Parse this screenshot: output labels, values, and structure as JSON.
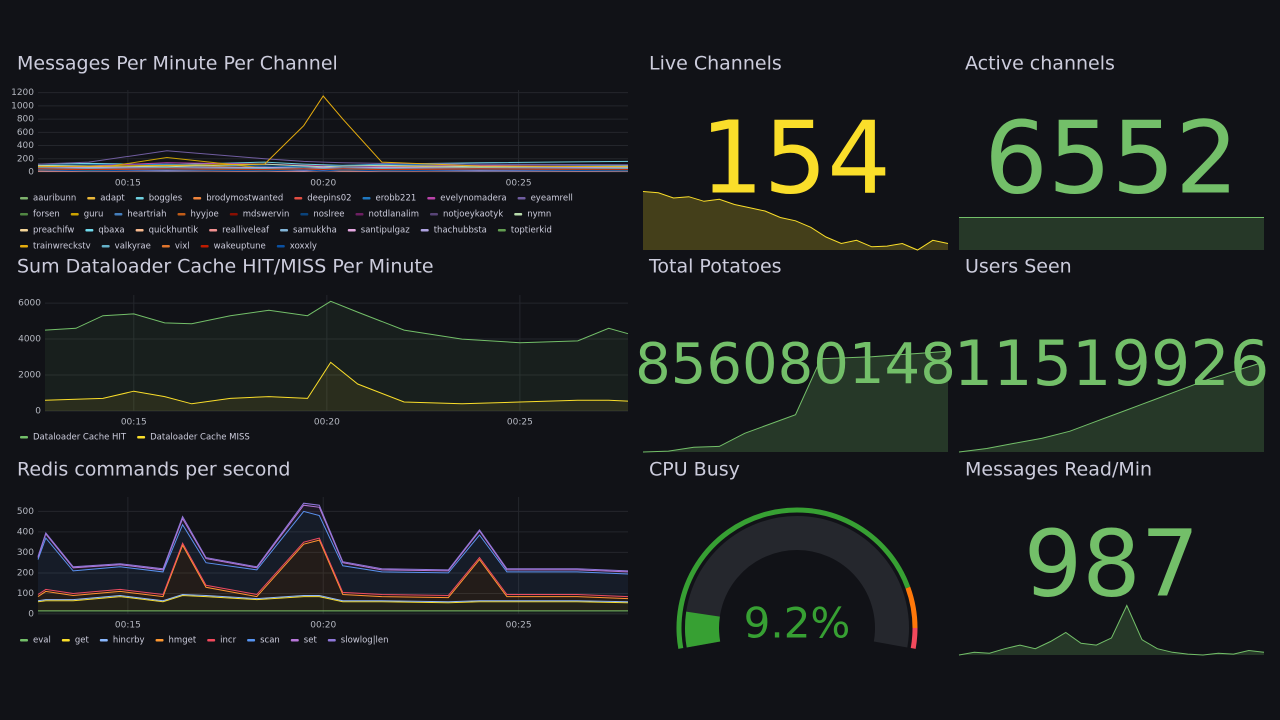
{
  "chart_data": [
    {
      "type": "line",
      "title": "Messages Per Minute Per Channel",
      "x": [
        12.7,
        14,
        16,
        18.5,
        19.5,
        20,
        20.5,
        21.5,
        24,
        27.8
      ],
      "xlim": [
        12.7,
        27.8
      ],
      "xticks": [
        {
          "value": 15,
          "label": "00:15"
        },
        {
          "value": 20,
          "label": "00:20"
        },
        {
          "value": 25,
          "label": "00:25"
        }
      ],
      "ylim": [
        0,
        1240
      ],
      "yticks": [
        0,
        200,
        400,
        600,
        800,
        1000,
        1200
      ],
      "grid": true,
      "series": [
        {
          "name": "aauribunn",
          "color": "#7EB26D",
          "values": [
            60,
            70,
            50,
            60,
            40,
            50,
            60,
            50,
            40,
            30
          ]
        },
        {
          "name": "adapt",
          "color": "#EAB839",
          "values": [
            90,
            80,
            100,
            70,
            60,
            50,
            60,
            80,
            70,
            60
          ]
        },
        {
          "name": "boggles",
          "color": "#6ED0E0",
          "values": [
            120,
            130,
            110,
            150,
            120,
            110,
            100,
            120,
            140,
            160
          ]
        },
        {
          "name": "brodymostwanted",
          "color": "#EF843C",
          "values": [
            40,
            60,
            50,
            40,
            30,
            40,
            50,
            40,
            30,
            40
          ]
        },
        {
          "name": "deepins02",
          "color": "#E24D42",
          "values": [
            20,
            30,
            20,
            20,
            30,
            20,
            20,
            30,
            20,
            20
          ]
        },
        {
          "name": "erobb221",
          "color": "#1F78C1",
          "values": [
            100,
            110,
            120,
            90,
            80,
            90,
            100,
            110,
            120,
            100
          ]
        },
        {
          "name": "evelynomadera",
          "color": "#BA43A9",
          "values": [
            80,
            90,
            140,
            120,
            100,
            90,
            80,
            90,
            100,
            80
          ]
        },
        {
          "name": "eyeamrell",
          "color": "#705DA0",
          "values": [
            120,
            150,
            320,
            200,
            160,
            150,
            140,
            130,
            120,
            110
          ]
        },
        {
          "name": "forsen",
          "color": "#508642",
          "values": [
            50,
            40,
            60,
            50,
            40,
            50,
            40,
            50,
            60,
            50
          ]
        },
        {
          "name": "guru",
          "color": "#CCA300",
          "values": [
            30,
            40,
            220,
            60,
            40,
            30,
            40,
            30,
            40,
            30
          ]
        },
        {
          "name": "heartriah",
          "color": "#447EBC",
          "values": [
            10,
            20,
            10,
            20,
            10,
            20,
            10,
            20,
            10,
            10
          ]
        },
        {
          "name": "hyyjoe",
          "color": "#C15C17",
          "values": [
            60,
            50,
            70,
            60,
            50,
            60,
            70,
            60,
            50,
            60
          ]
        },
        {
          "name": "mdswervin",
          "color": "#890F02",
          "values": [
            30,
            20,
            30,
            20,
            30,
            20,
            30,
            20,
            30,
            20
          ]
        },
        {
          "name": "noslree",
          "color": "#0A437C",
          "values": [
            40,
            50,
            40,
            50,
            40,
            50,
            40,
            50,
            40,
            50
          ]
        },
        {
          "name": "notdlanalim",
          "color": "#6D1F62",
          "values": [
            20,
            30,
            40,
            30,
            20,
            30,
            40,
            30,
            20,
            30
          ]
        },
        {
          "name": "notjoeykaotyk",
          "color": "#584477",
          "values": [
            70,
            60,
            80,
            70,
            60,
            70,
            80,
            70,
            60,
            70
          ]
        },
        {
          "name": "nymn",
          "color": "#B7DBAB",
          "values": [
            100,
            90,
            80,
            120,
            90,
            80,
            90,
            100,
            80,
            90
          ]
        },
        {
          "name": "preachifw",
          "color": "#F4D598",
          "values": [
            20,
            20,
            30,
            20,
            20,
            30,
            20,
            20,
            30,
            20
          ]
        },
        {
          "name": "qbaxa",
          "color": "#70DBED",
          "values": [
            50,
            60,
            50,
            60,
            50,
            60,
            50,
            60,
            50,
            60
          ]
        },
        {
          "name": "quickhuntik",
          "color": "#F9BA8F",
          "values": [
            30,
            40,
            30,
            40,
            30,
            40,
            30,
            40,
            30,
            40
          ]
        },
        {
          "name": "realliveleaf",
          "color": "#F29191",
          "values": [
            10,
            10,
            20,
            10,
            10,
            20,
            10,
            10,
            20,
            10
          ]
        },
        {
          "name": "samukkha",
          "color": "#82B5D8",
          "values": [
            40,
            30,
            40,
            30,
            40,
            30,
            40,
            30,
            40,
            30
          ]
        },
        {
          "name": "santipulgaz",
          "color": "#E5A8E2",
          "values": [
            20,
            30,
            20,
            30,
            20,
            30,
            20,
            30,
            20,
            30
          ]
        },
        {
          "name": "thachubbsta",
          "color": "#AEA2E0",
          "values": [
            60,
            70,
            60,
            70,
            60,
            70,
            60,
            70,
            60,
            70
          ]
        },
        {
          "name": "toptierkid",
          "color": "#629E51",
          "values": [
            30,
            30,
            40,
            30,
            30,
            40,
            30,
            30,
            40,
            30
          ]
        },
        {
          "name": "trainwreckstv",
          "color": "#E5AC0E",
          "values": [
            80,
            90,
            100,
            120,
            700,
            1150,
            800,
            150,
            90,
            80
          ]
        },
        {
          "name": "valkyrae",
          "color": "#64B0C8",
          "values": [
            60,
            50,
            60,
            50,
            60,
            50,
            60,
            50,
            60,
            50
          ]
        },
        {
          "name": "vixl",
          "color": "#E0752D",
          "values": [
            20,
            40,
            30,
            20,
            30,
            40,
            20,
            30,
            40,
            20
          ]
        },
        {
          "name": "wakeuptune",
          "color": "#BF1B00",
          "values": [
            50,
            40,
            50,
            40,
            50,
            40,
            50,
            40,
            50,
            40
          ]
        },
        {
          "name": "xoxxly",
          "color": "#0A50A1",
          "values": [
            30,
            20,
            30,
            20,
            30,
            20,
            30,
            20,
            30,
            20
          ]
        }
      ]
    },
    {
      "type": "line",
      "title": "Sum Dataloader Cache HIT/MISS Per Minute",
      "x": [
        12.7,
        13.5,
        14.2,
        15,
        15.8,
        16.5,
        17.5,
        18.5,
        19.5,
        20.1,
        20.8,
        22,
        23.5,
        25,
        26.5,
        27.3,
        27.8
      ],
      "xlim": [
        12.7,
        27.8
      ],
      "xticks": [
        {
          "value": 15,
          "label": "00:15"
        },
        {
          "value": 20,
          "label": "00:20"
        },
        {
          "value": 25,
          "label": "00:25"
        }
      ],
      "ylim": [
        0,
        6450
      ],
      "yticks": [
        0,
        2000,
        4000,
        6000
      ],
      "grid": true,
      "series": [
        {
          "name": "Dataloader Cache HIT",
          "color": "#73bf69",
          "values": [
            4500,
            4600,
            5300,
            5400,
            4900,
            4850,
            5300,
            5600,
            5300,
            6100,
            5500,
            4500,
            4000,
            3800,
            3900,
            4600,
            4300
          ]
        },
        {
          "name": "Dataloader Cache MISS",
          "color": "#fade2a",
          "values": [
            600,
            650,
            700,
            1100,
            800,
            400,
            700,
            800,
            700,
            2700,
            1500,
            500,
            400,
            500,
            600,
            600,
            550
          ]
        }
      ]
    },
    {
      "type": "line",
      "stacked": true,
      "title": "Redis commands per second",
      "x": [
        12.7,
        12.9,
        13.6,
        14.8,
        15.9,
        16.4,
        17,
        18.3,
        19.5,
        19.9,
        20.5,
        21.5,
        23.2,
        24,
        24.7,
        26.5,
        27.8
      ],
      "xlim": [
        12.7,
        27.8
      ],
      "xticks": [
        {
          "value": 15,
          "label": "00:15"
        },
        {
          "value": 20,
          "label": "00:20"
        },
        {
          "value": 25,
          "label": "00:25"
        }
      ],
      "ylim": [
        0,
        570
      ],
      "yticks": [
        0,
        100,
        200,
        300,
        400,
        500
      ],
      "grid": true,
      "series": [
        {
          "name": "eval",
          "color": "#73bf69",
          "values": [
            15,
            15,
            15,
            15,
            15,
            15,
            15,
            15,
            15,
            15,
            15,
            15,
            15,
            15,
            15,
            15,
            15
          ]
        },
        {
          "name": "get",
          "color": "#fade2a",
          "values": [
            45,
            50,
            50,
            70,
            45,
            75,
            70,
            55,
            70,
            70,
            45,
            45,
            40,
            45,
            45,
            45,
            40
          ]
        },
        {
          "name": "hincrby",
          "color": "#8ab8ff",
          "values": [
            5,
            5,
            5,
            5,
            5,
            5,
            5,
            5,
            5,
            5,
            5,
            5,
            5,
            5,
            5,
            5,
            5
          ]
        },
        {
          "name": "hmget",
          "color": "#ff9830",
          "values": [
            20,
            40,
            20,
            20,
            20,
            240,
            40,
            10,
            250,
            270,
            30,
            20,
            20,
            200,
            20,
            20,
            15
          ]
        },
        {
          "name": "incr",
          "color": "#f2495c",
          "values": [
            10,
            10,
            10,
            10,
            10,
            10,
            10,
            10,
            10,
            10,
            10,
            10,
            10,
            10,
            10,
            10,
            10
          ]
        },
        {
          "name": "scan",
          "color": "#5794f2",
          "values": [
            170,
            250,
            110,
            110,
            110,
            90,
            110,
            120,
            150,
            110,
            130,
            110,
            110,
            110,
            110,
            110,
            110
          ]
        },
        {
          "name": "set",
          "color": "#b877d9",
          "values": [
            10,
            20,
            15,
            10,
            10,
            30,
            20,
            10,
            30,
            40,
            15,
            10,
            10,
            20,
            10,
            10,
            10
          ]
        },
        {
          "name": "slowlog|len",
          "color": "#8f77d9",
          "values": [
            5,
            5,
            5,
            5,
            5,
            10,
            5,
            5,
            10,
            10,
            5,
            5,
            5,
            5,
            5,
            5,
            5
          ]
        }
      ]
    }
  ],
  "stats": [
    {
      "type": "stat",
      "title": "Live Channels",
      "value": 154,
      "color": "#fade2a",
      "sparkline": [
        180,
        178,
        170,
        172,
        165,
        168,
        160,
        155,
        150,
        140,
        135,
        125,
        110,
        100,
        105,
        95,
        96,
        100,
        90,
        105,
        100
      ]
    },
    {
      "type": "stat",
      "title": "Active channels",
      "value": 6552,
      "color": "#73bf69",
      "sparkline": [
        6552,
        6552,
        6552,
        6552,
        6552,
        6552
      ]
    },
    {
      "type": "stat",
      "title": "Total Potatoes",
      "value": 856080148,
      "color": "#73bf69",
      "sparkline": [
        855000000,
        855010000,
        855050000,
        855060000,
        855200000,
        855300000,
        855400000,
        856000000,
        856010000,
        856020000,
        856040000,
        856060000,
        856080148
      ]
    },
    {
      "type": "stat",
      "title": "Users Seen",
      "value": 11519926,
      "color": "#73bf69",
      "sparkline": [
        11000000,
        11020000,
        11050000,
        11080000,
        11120000,
        11180000,
        11240000,
        11300000,
        11360000,
        11420000,
        11470000,
        11519926
      ]
    },
    {
      "type": "gauge",
      "title": "CPU Busy",
      "value": 9.2,
      "value_label": "9.2%",
      "color": "#37a033",
      "min": 0,
      "max": 100,
      "thresholds": [
        {
          "value": 0,
          "color": "#37a033"
        },
        {
          "value": 85,
          "color": "#ff780a"
        },
        {
          "value": 95,
          "color": "#f2495c"
        }
      ]
    },
    {
      "type": "stat",
      "title": "Messages Read/Min",
      "value": 987,
      "color": "#73bf69",
      "sparkline": [
        450,
        480,
        470,
        520,
        560,
        520,
        600,
        700,
        580,
        560,
        640,
        1000,
        620,
        520,
        480,
        460,
        450,
        470,
        460,
        500,
        480
      ]
    }
  ]
}
